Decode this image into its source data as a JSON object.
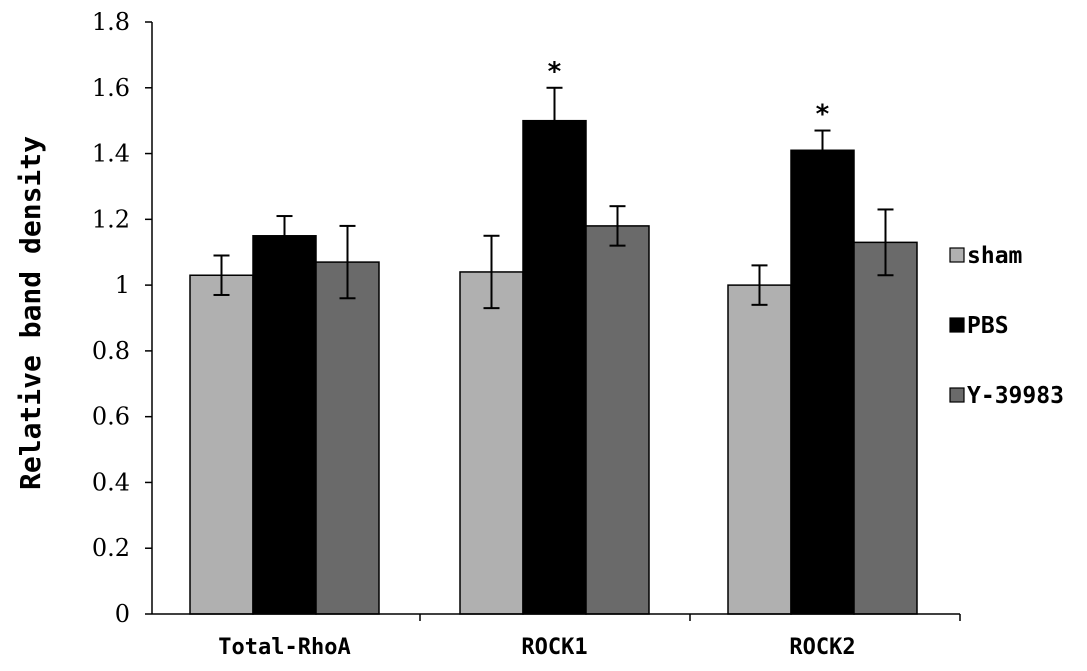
{
  "chart_data": {
    "type": "bar",
    "title": "",
    "xlabel": "",
    "ylabel": "Relative band density",
    "ylim": [
      0,
      1.8
    ],
    "yticks": [
      "0",
      "0.2",
      "0.4",
      "0.6",
      "0.8",
      "1",
      "1.2",
      "1.4",
      "1.6",
      "1.8"
    ],
    "categories": [
      "Total-RhoA",
      "ROCK1",
      "ROCK2"
    ],
    "series": [
      {
        "name": "sham",
        "color": "#b0b0b0",
        "values": [
          1.03,
          1.04,
          1.0
        ],
        "errors": [
          0.06,
          0.11,
          0.06
        ]
      },
      {
        "name": "PBS",
        "color": "#000000",
        "values": [
          1.15,
          1.5,
          1.41
        ],
        "errors": [
          0.06,
          0.1,
          0.06
        ]
      },
      {
        "name": "Y-39983",
        "color": "#6a6a6a",
        "values": [
          1.07,
          1.18,
          1.13
        ],
        "errors": [
          0.11,
          0.06,
          0.1
        ]
      }
    ],
    "annotations": [
      {
        "category": "ROCK1",
        "series": "PBS",
        "text": "*"
      },
      {
        "category": "ROCK2",
        "series": "PBS",
        "text": "*"
      }
    ],
    "grid": false,
    "legend_position": "right"
  }
}
